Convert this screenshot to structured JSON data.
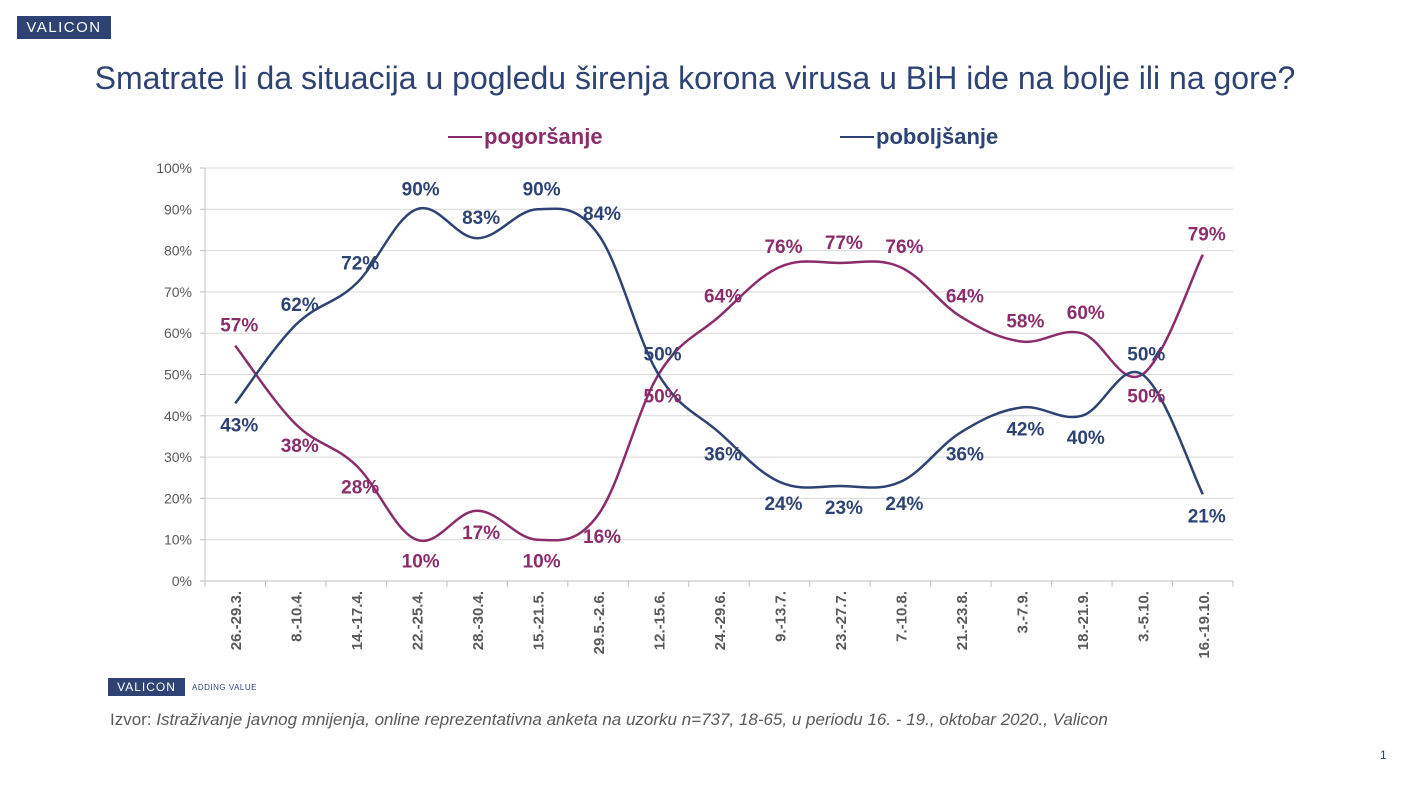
{
  "header": {
    "logo": "VALICON",
    "title": "Smatrate li da situacija u pogledu širenja korona virusa u BiH ide na bolje ili na gore?"
  },
  "chart_data": {
    "type": "line",
    "categories": [
      "26.-29.3.",
      "8.-10.4.",
      "14.-17.4.",
      "22.-25.4.",
      "28.-30.4.",
      "15.-21.5.",
      "29.5.-2.6.",
      "12.-15.6.",
      "24.-29.6.",
      "9.-13.7.",
      "23.-27.7.",
      "7.-10.8.",
      "21.-23.8.",
      "3.-7.9.",
      "18.-21.9.",
      "3.-5.10.",
      "16.-19.10."
    ],
    "series": [
      {
        "name": "pogoršanje",
        "color": "#8b2c6b",
        "values": [
          57,
          38,
          28,
          10,
          17,
          10,
          16,
          50,
          64,
          76,
          77,
          76,
          64,
          58,
          60,
          50,
          79
        ]
      },
      {
        "name": "poboljšanje",
        "color": "#2e4374",
        "values": [
          43,
          62,
          72,
          90,
          83,
          90,
          84,
          50,
          36,
          24,
          23,
          24,
          36,
          42,
          40,
          50,
          21
        ]
      }
    ],
    "value_suffix": "%",
    "y_ticks": [
      "0%",
      "10%",
      "20%",
      "30%",
      "40%",
      "50%",
      "60%",
      "70%",
      "80%",
      "90%",
      "100%"
    ],
    "ylim": [
      0,
      100
    ],
    "grid": true,
    "legend_position": "top"
  },
  "footer": {
    "logo": "VALICON",
    "tagline": "ADDING VALUE",
    "source_label": "Izvor:",
    "source_text": "Istraživanje javnog mnijenja, online reprezentativna anketa na uzorku n=737, 18-65, u periodu 16. - 19., oktobar 2020., Valicon",
    "page_number": "1"
  }
}
